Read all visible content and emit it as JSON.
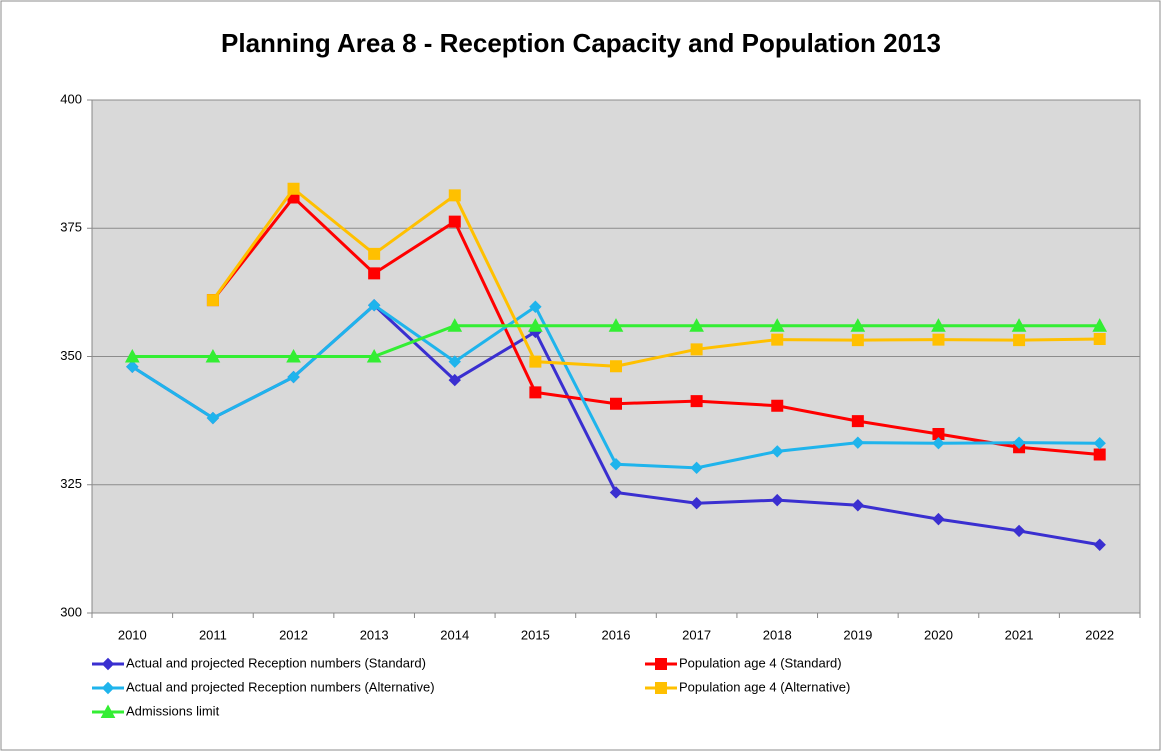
{
  "chart_data": {
    "type": "line",
    "title": "Planning Area 8 - Reception Capacity and Population 2013",
    "categories": [
      "2010",
      "2011",
      "2012",
      "2013",
      "2014",
      "2015",
      "2016",
      "2017",
      "2018",
      "2019",
      "2020",
      "2021",
      "2022"
    ],
    "ylim": [
      300,
      400
    ],
    "yticks": [
      300,
      325,
      350,
      375,
      400
    ],
    "grid": true,
    "legend": "bottom",
    "series": [
      {
        "name": "Actual and projected Reception numbers (Standard)",
        "color": "#3a2fd0",
        "marker": "diamond",
        "values": [
          348,
          338,
          346,
          360,
          345.4,
          354.8,
          323.5,
          321.4,
          322,
          321,
          318.3,
          316,
          313.3
        ]
      },
      {
        "name": "Population age 4 (Standard)",
        "color": "#ff0000",
        "marker": "square",
        "values": [
          null,
          361,
          381,
          366.2,
          376.3,
          343,
          340.8,
          341.3,
          340.4,
          337.4,
          334.9,
          332.3,
          330.9
        ]
      },
      {
        "name": "Actual and projected Reception numbers (Alternative)",
        "color": "#1fb4ec",
        "marker": "diamond",
        "values": [
          348,
          338,
          346,
          360,
          349,
          359.7,
          329,
          328.3,
          331.5,
          333.2,
          333.1,
          333.2,
          333.1
        ]
      },
      {
        "name": "Population age 4 (Alternative)",
        "color": "#ffc000",
        "marker": "square",
        "values": [
          null,
          361,
          382.7,
          370,
          381.4,
          349,
          348.1,
          351.4,
          353.3,
          353.2,
          353.3,
          353.2,
          353.4
        ]
      },
      {
        "name": "Admissions limit",
        "color": "#33ee33",
        "marker": "triangle",
        "values": [
          350,
          350,
          350,
          350,
          356,
          356,
          356,
          356,
          356,
          356,
          356,
          356,
          356
        ]
      }
    ]
  }
}
